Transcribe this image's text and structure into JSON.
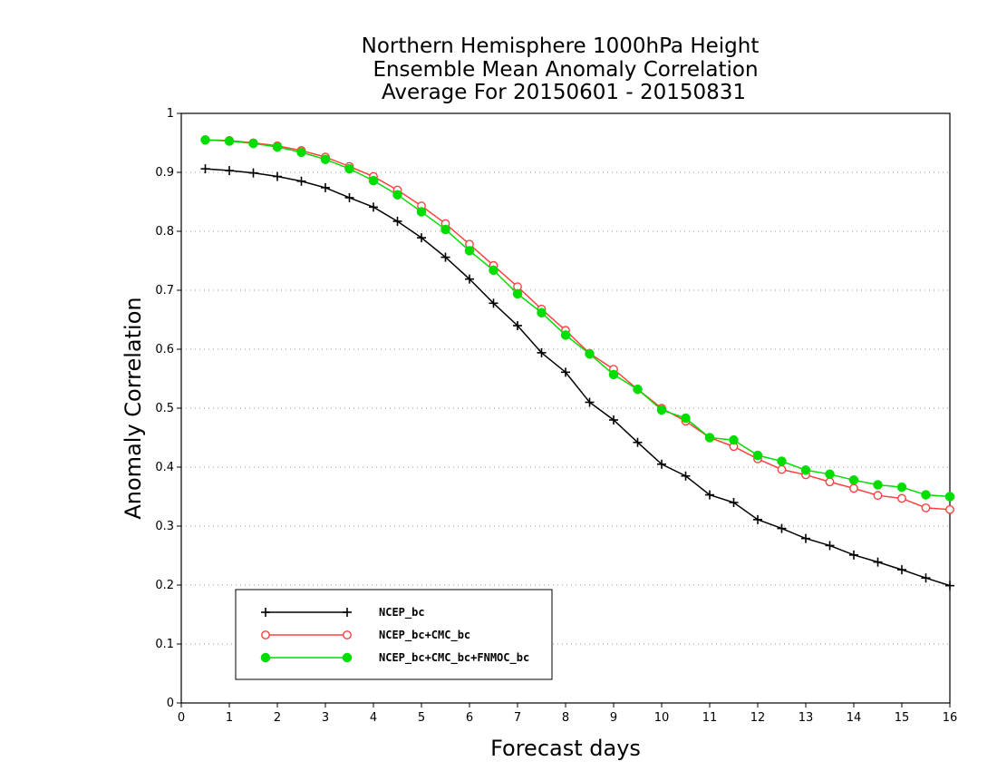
{
  "chart_data": {
    "type": "line",
    "title": [
      "Northern Hemisphere 1000hPa Height",
      "Ensemble Mean Anomaly Correlation",
      "Average For 20150601 - 20150831"
    ],
    "xlabel": "Forecast days",
    "ylabel": "Anomaly Correlation",
    "xlim": [
      0,
      16
    ],
    "ylim": [
      0,
      1
    ],
    "xticks": [
      "0",
      "1",
      "2",
      "3",
      "4",
      "5",
      "6",
      "7",
      "8",
      "9",
      "10",
      "11",
      "12",
      "13",
      "14",
      "15",
      "16"
    ],
    "yticks": [
      "0",
      "0.1",
      "0.2",
      "0.3",
      "0.4",
      "0.5",
      "0.6",
      "0.7",
      "0.8",
      "0.9",
      "1"
    ],
    "grid": "horizontal dotted",
    "legend_position": "bottom-left",
    "x": [
      0.5,
      1,
      1.5,
      2,
      2.5,
      3,
      3.5,
      4,
      4.5,
      5,
      5.5,
      6,
      6.5,
      7,
      7.5,
      8,
      8.5,
      9,
      9.5,
      10,
      10.5,
      11,
      11.5,
      12,
      12.5,
      13,
      13.5,
      14,
      14.5,
      15,
      15.5,
      16
    ],
    "series": [
      {
        "name": "NCEP_bc",
        "color": "#000000",
        "marker": "plus",
        "values": [
          0.906,
          0.903,
          0.899,
          0.893,
          0.885,
          0.874,
          0.857,
          0.841,
          0.817,
          0.789,
          0.756,
          0.719,
          0.678,
          0.64,
          0.594,
          0.561,
          0.51,
          0.48,
          0.442,
          0.405,
          0.385,
          0.353,
          0.34,
          0.311,
          0.296,
          0.279,
          0.267,
          0.251,
          0.239,
          0.226,
          0.212,
          0.199
        ]
      },
      {
        "name": "NCEP_bc+CMC_bc",
        "color": "#ff4040",
        "marker": "open-circle",
        "values": [
          0.955,
          0.954,
          0.95,
          0.945,
          0.937,
          0.926,
          0.91,
          0.893,
          0.87,
          0.843,
          0.813,
          0.778,
          0.742,
          0.706,
          0.668,
          0.632,
          0.593,
          0.566,
          0.532,
          0.5,
          0.478,
          0.45,
          0.435,
          0.414,
          0.396,
          0.387,
          0.375,
          0.364,
          0.352,
          0.347,
          0.331,
          0.328
        ]
      },
      {
        "name": "NCEP_bc+CMC_bc+FNMOC_bc",
        "color": "#00dd00",
        "marker": "filled-circle",
        "values": [
          0.955,
          0.953,
          0.949,
          0.943,
          0.934,
          0.922,
          0.906,
          0.886,
          0.862,
          0.833,
          0.803,
          0.767,
          0.734,
          0.694,
          0.662,
          0.624,
          0.592,
          0.557,
          0.532,
          0.497,
          0.483,
          0.45,
          0.446,
          0.42,
          0.41,
          0.395,
          0.388,
          0.378,
          0.37,
          0.366,
          0.353,
          0.35
        ]
      }
    ]
  }
}
